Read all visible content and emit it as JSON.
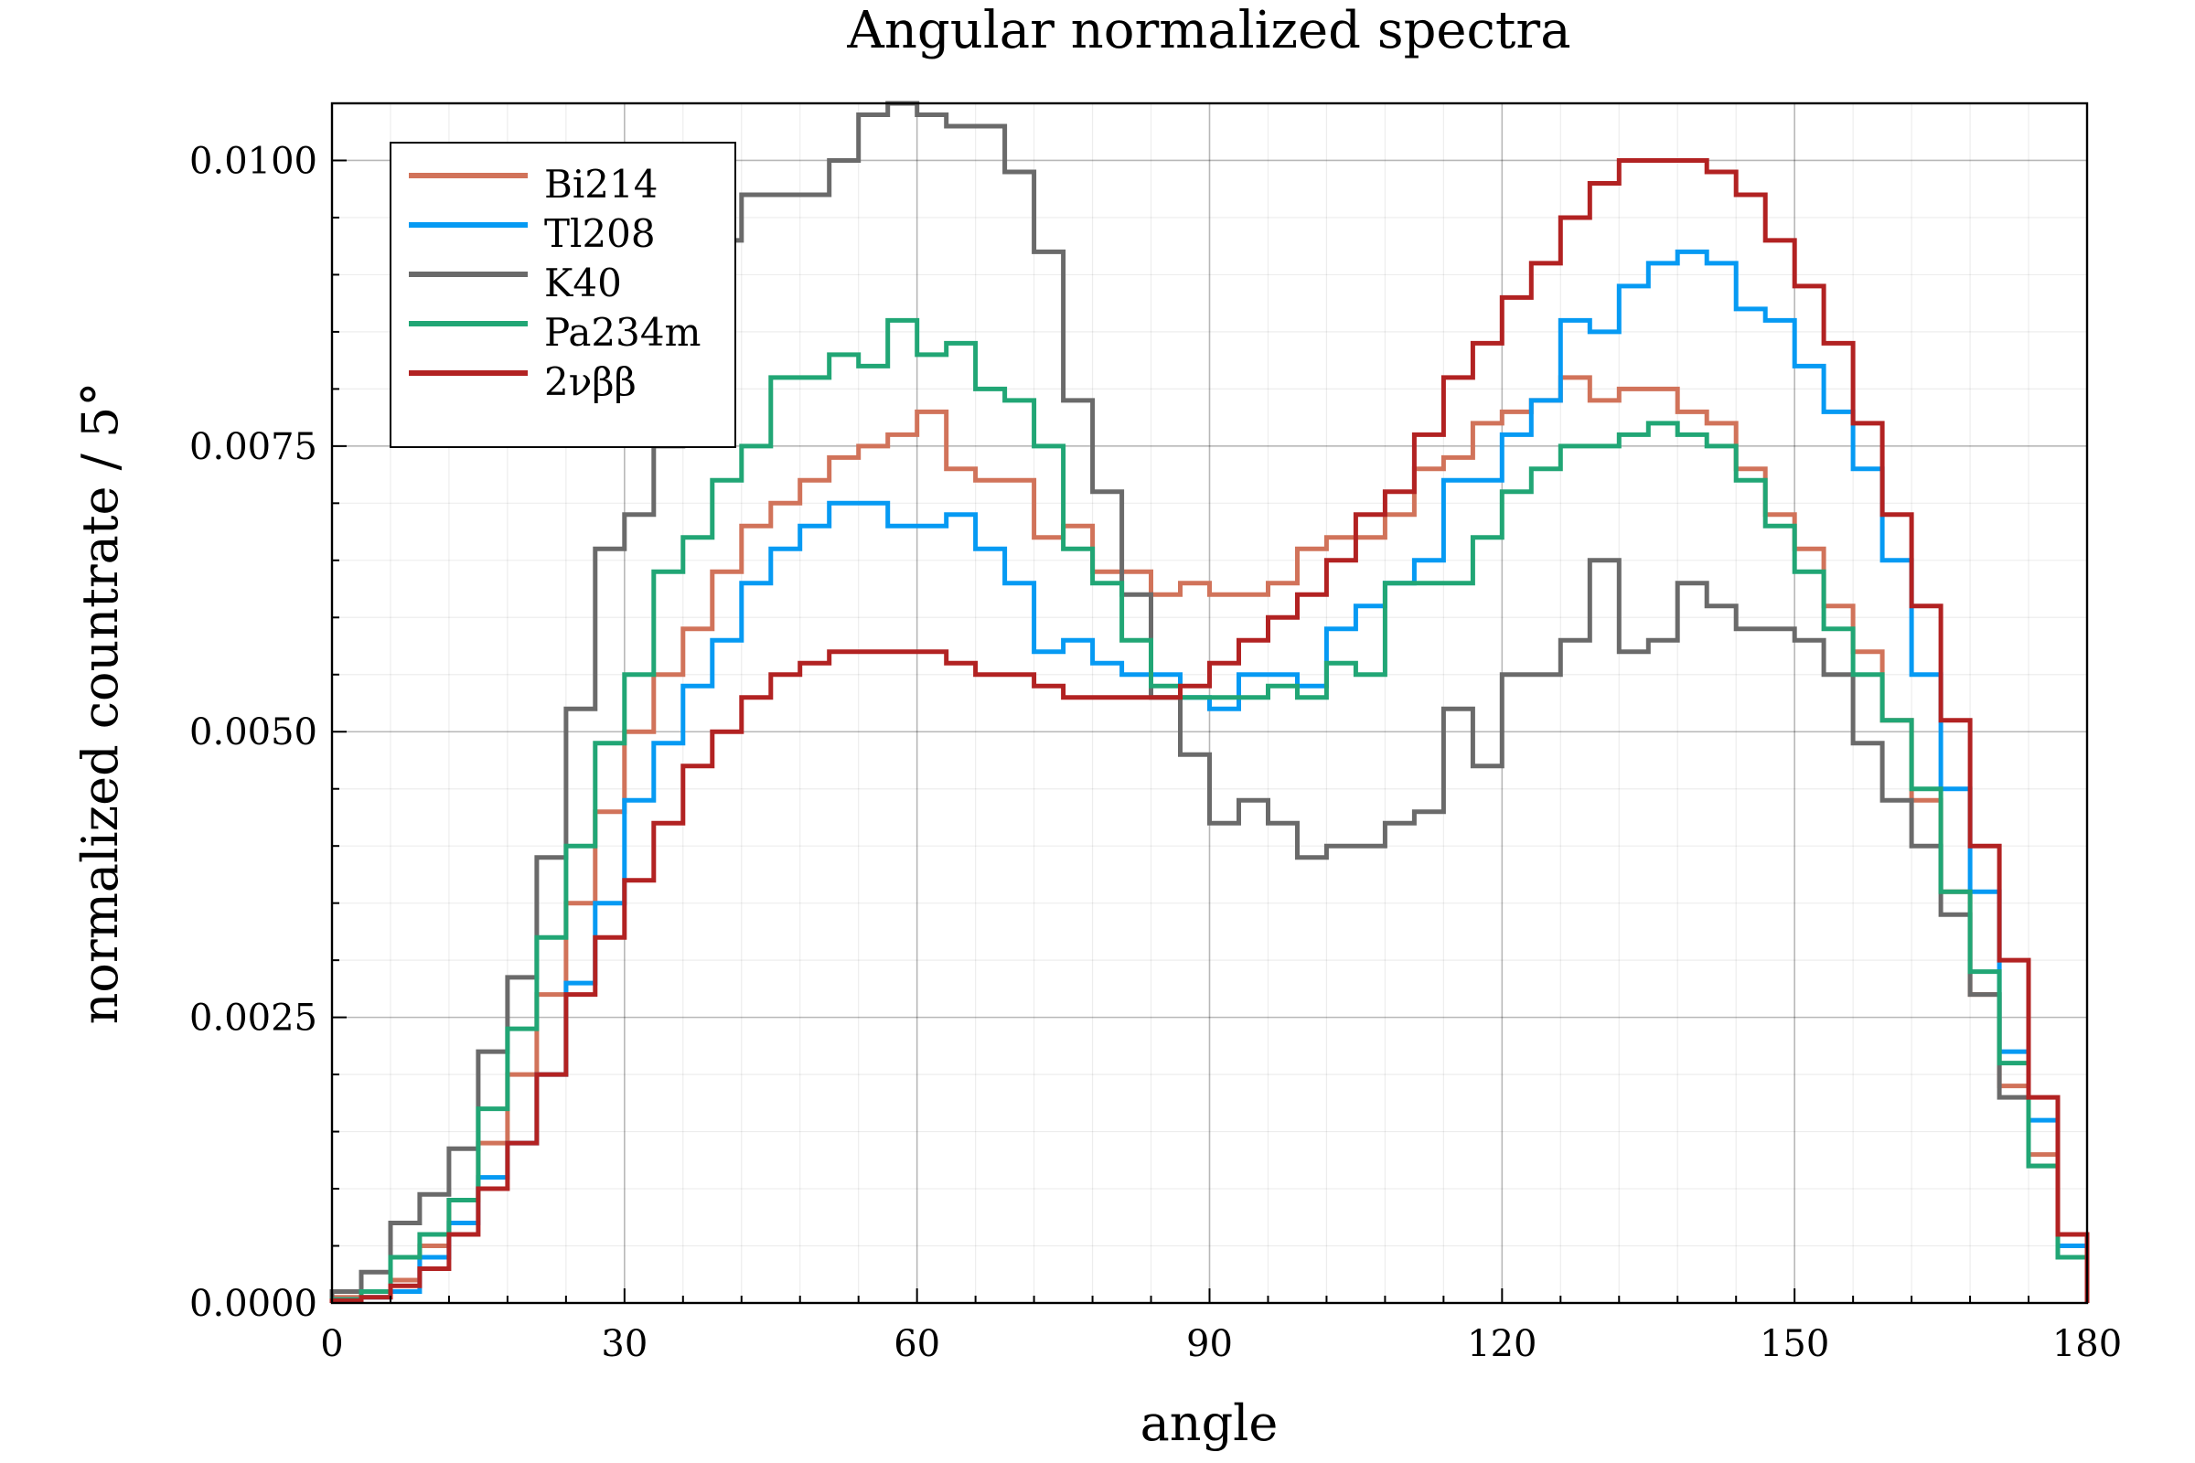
{
  "chart_data": {
    "type": "line",
    "step": true,
    "title": "Angular normalized spectra",
    "xlabel": "angle",
    "ylabel": "normalized countrate / 5°",
    "xlim": [
      0,
      180
    ],
    "ylim": [
      0,
      0.0105
    ],
    "xticks": [
      0,
      30,
      60,
      90,
      120,
      150,
      180
    ],
    "xtick_labels": [
      "0",
      "30",
      "60",
      "90",
      "120",
      "150",
      "180"
    ],
    "yticks": [
      0,
      0.0025,
      0.005,
      0.0075,
      0.01
    ],
    "ytick_labels": [
      "0.0000",
      "0.0025",
      "0.0050",
      "0.0075",
      "0.0100"
    ],
    "grid": true,
    "minor_grid": true,
    "legend_position": "top-left",
    "bin_edges": [
      0,
      3,
      6,
      9,
      12,
      15,
      18,
      21,
      24,
      27,
      30,
      33,
      36,
      39,
      42,
      45,
      48,
      51,
      54,
      57,
      60,
      63,
      66,
      69,
      72,
      75,
      78,
      81,
      84,
      87,
      90,
      93,
      96,
      99,
      102,
      105,
      108,
      111,
      114,
      117,
      120,
      123,
      126,
      129,
      132,
      135,
      138,
      141,
      144,
      147,
      150,
      153,
      156,
      159,
      162,
      165,
      168,
      171,
      174,
      177,
      180
    ],
    "series": [
      {
        "name": "Bi214",
        "color": "#D1735A",
        "values": [
          5e-05,
          0.0001,
          0.0002,
          0.0005,
          0.0009,
          0.0014,
          0.002,
          0.0027,
          0.0035,
          0.0043,
          0.005,
          0.0055,
          0.0059,
          0.0064,
          0.0068,
          0.007,
          0.0072,
          0.0074,
          0.0075,
          0.0076,
          0.0078,
          0.0073,
          0.0072,
          0.0072,
          0.0067,
          0.0068,
          0.0064,
          0.0064,
          0.0062,
          0.0063,
          0.0062,
          0.0062,
          0.0063,
          0.0066,
          0.0067,
          0.0067,
          0.0069,
          0.0073,
          0.0074,
          0.0077,
          0.0078,
          0.0079,
          0.0081,
          0.0079,
          0.008,
          0.008,
          0.0078,
          0.0077,
          0.0073,
          0.0069,
          0.0066,
          0.0061,
          0.0057,
          0.0051,
          0.0044,
          0.0036,
          0.0027,
          0.0019,
          0.0013,
          0.0004
        ]
      },
      {
        "name": "Tl208",
        "color": "#069AF3",
        "values": [
          3e-05,
          5e-05,
          0.0001,
          0.0004,
          0.0007,
          0.0011,
          0.0014,
          0.002,
          0.0028,
          0.0035,
          0.0044,
          0.0049,
          0.0054,
          0.0058,
          0.0063,
          0.0066,
          0.0068,
          0.007,
          0.007,
          0.0068,
          0.0068,
          0.0069,
          0.0066,
          0.0063,
          0.0057,
          0.0058,
          0.0056,
          0.0055,
          0.0055,
          0.0053,
          0.0052,
          0.0055,
          0.0055,
          0.0054,
          0.0059,
          0.0061,
          0.0063,
          0.0065,
          0.0072,
          0.0072,
          0.0076,
          0.0079,
          0.0086,
          0.0085,
          0.0089,
          0.0091,
          0.0092,
          0.0091,
          0.0087,
          0.0086,
          0.0082,
          0.0078,
          0.0073,
          0.0065,
          0.0055,
          0.0045,
          0.0036,
          0.0022,
          0.0016,
          0.0005
        ]
      },
      {
        "name": "K40",
        "color": "#6A6A6A",
        "values": [
          0.0001,
          0.00027,
          0.0007,
          0.00095,
          0.00135,
          0.0022,
          0.00285,
          0.0039,
          0.0052,
          0.0066,
          0.0069,
          0.0075,
          0.0085,
          0.0093,
          0.0097,
          0.0097,
          0.0097,
          0.01,
          0.0104,
          0.0106,
          0.0104,
          0.0103,
          0.0103,
          0.0099,
          0.0092,
          0.0079,
          0.0071,
          0.0062,
          0.0053,
          0.0048,
          0.0042,
          0.0044,
          0.0042,
          0.0039,
          0.004,
          0.004,
          0.0042,
          0.0043,
          0.0052,
          0.0047,
          0.0055,
          0.0055,
          0.0058,
          0.0065,
          0.0057,
          0.0058,
          0.0063,
          0.0061,
          0.0059,
          0.0059,
          0.0058,
          0.0055,
          0.0049,
          0.0044,
          0.004,
          0.0034,
          0.0027,
          0.0018,
          0.0012,
          0.0004
        ]
      },
      {
        "name": "Pa234m",
        "color": "#21A675",
        "values": [
          3e-05,
          0.0001,
          0.0004,
          0.0006,
          0.0009,
          0.0017,
          0.0024,
          0.0032,
          0.004,
          0.0049,
          0.0055,
          0.0064,
          0.0067,
          0.0072,
          0.0075,
          0.0081,
          0.0081,
          0.0083,
          0.0082,
          0.0086,
          0.0083,
          0.0084,
          0.008,
          0.0079,
          0.0075,
          0.0066,
          0.0063,
          0.0058,
          0.0054,
          0.0053,
          0.0053,
          0.0053,
          0.0054,
          0.0053,
          0.0056,
          0.0055,
          0.0063,
          0.0063,
          0.0063,
          0.0067,
          0.0071,
          0.0073,
          0.0075,
          0.0075,
          0.0076,
          0.0077,
          0.0076,
          0.0075,
          0.0072,
          0.0068,
          0.0064,
          0.0059,
          0.0055,
          0.0051,
          0.0045,
          0.0036,
          0.0029,
          0.0021,
          0.0012,
          0.0004
        ]
      },
      {
        "name": "2νββ",
        "color": "#B22222",
        "values": [
          2e-05,
          5e-05,
          0.00015,
          0.0003,
          0.0006,
          0.001,
          0.0014,
          0.002,
          0.0027,
          0.0032,
          0.0037,
          0.0042,
          0.0047,
          0.005,
          0.0053,
          0.0055,
          0.0056,
          0.0057,
          0.0057,
          0.0057,
          0.0057,
          0.0056,
          0.0055,
          0.0055,
          0.0054,
          0.0053,
          0.0053,
          0.0053,
          0.0053,
          0.0054,
          0.0056,
          0.0058,
          0.006,
          0.0062,
          0.0065,
          0.0069,
          0.0071,
          0.0076,
          0.0081,
          0.0084,
          0.0088,
          0.0091,
          0.0095,
          0.0098,
          0.01,
          0.01,
          0.01,
          0.0099,
          0.0097,
          0.0093,
          0.0089,
          0.0084,
          0.0077,
          0.0069,
          0.0061,
          0.0051,
          0.004,
          0.003,
          0.0018,
          0.0006
        ]
      }
    ]
  }
}
